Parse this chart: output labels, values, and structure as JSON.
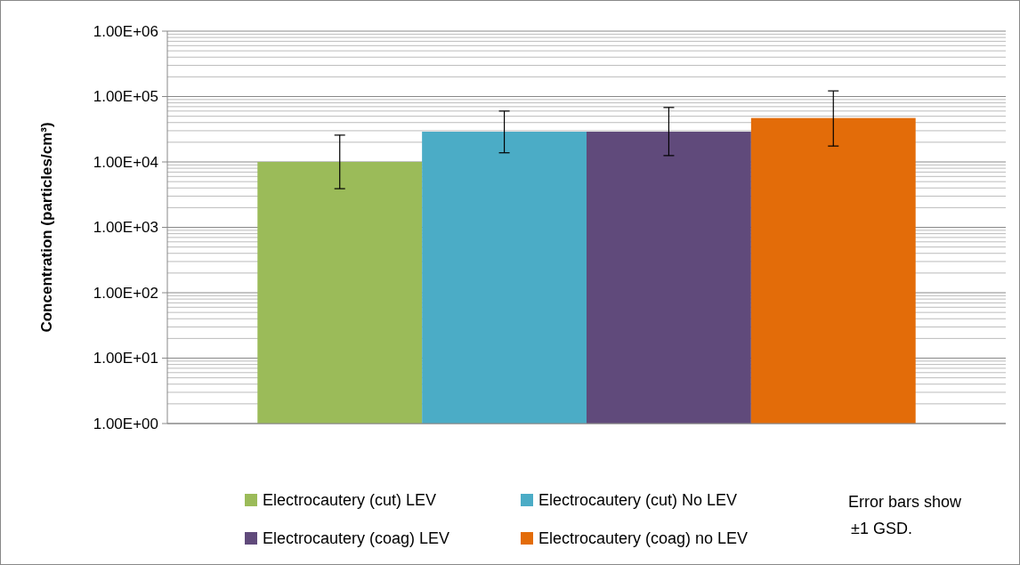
{
  "chart_data": {
    "type": "bar",
    "ylabel": "Concentration (particles/cm³)",
    "categories": [
      null
    ],
    "series": [
      {
        "name": "Electrocautery (cut) LEV",
        "color": "#9bbb59",
        "values": [
          10000
        ],
        "errors": [
          [
            3900,
            25700
          ]
        ]
      },
      {
        "name": "Electrocautery (cut) No LEV",
        "color": "#4bacc6",
        "values": [
          29000
        ],
        "errors": [
          [
            13800,
            60000
          ]
        ]
      },
      {
        "name": "Electrocautery (coag) LEV",
        "color": "#604a7b",
        "values": [
          29000
        ],
        "errors": [
          [
            12500,
            68000
          ]
        ]
      },
      {
        "name": "Electrocautery (coag) no LEV",
        "color": "#e36c09",
        "values": [
          47000
        ],
        "errors": [
          [
            17500,
            122000
          ]
        ]
      }
    ],
    "log": true,
    "ylim": [
      1,
      1000000
    ],
    "yticks": [
      {
        "value": 1,
        "label": "1.00E+00"
      },
      {
        "value": 10,
        "label": "1.00E+01"
      },
      {
        "value": 100,
        "label": "1.00E+02"
      },
      {
        "value": 1000,
        "label": "1.00E+03"
      },
      {
        "value": 10000,
        "label": "1.00E+04"
      },
      {
        "value": 100000,
        "label": "1.00E+05"
      },
      {
        "value": 1000000,
        "label": "1.00E+06"
      }
    ],
    "grid": true,
    "legend": "bottom",
    "annotations": [
      "Error bars show ±1 GSD."
    ]
  }
}
